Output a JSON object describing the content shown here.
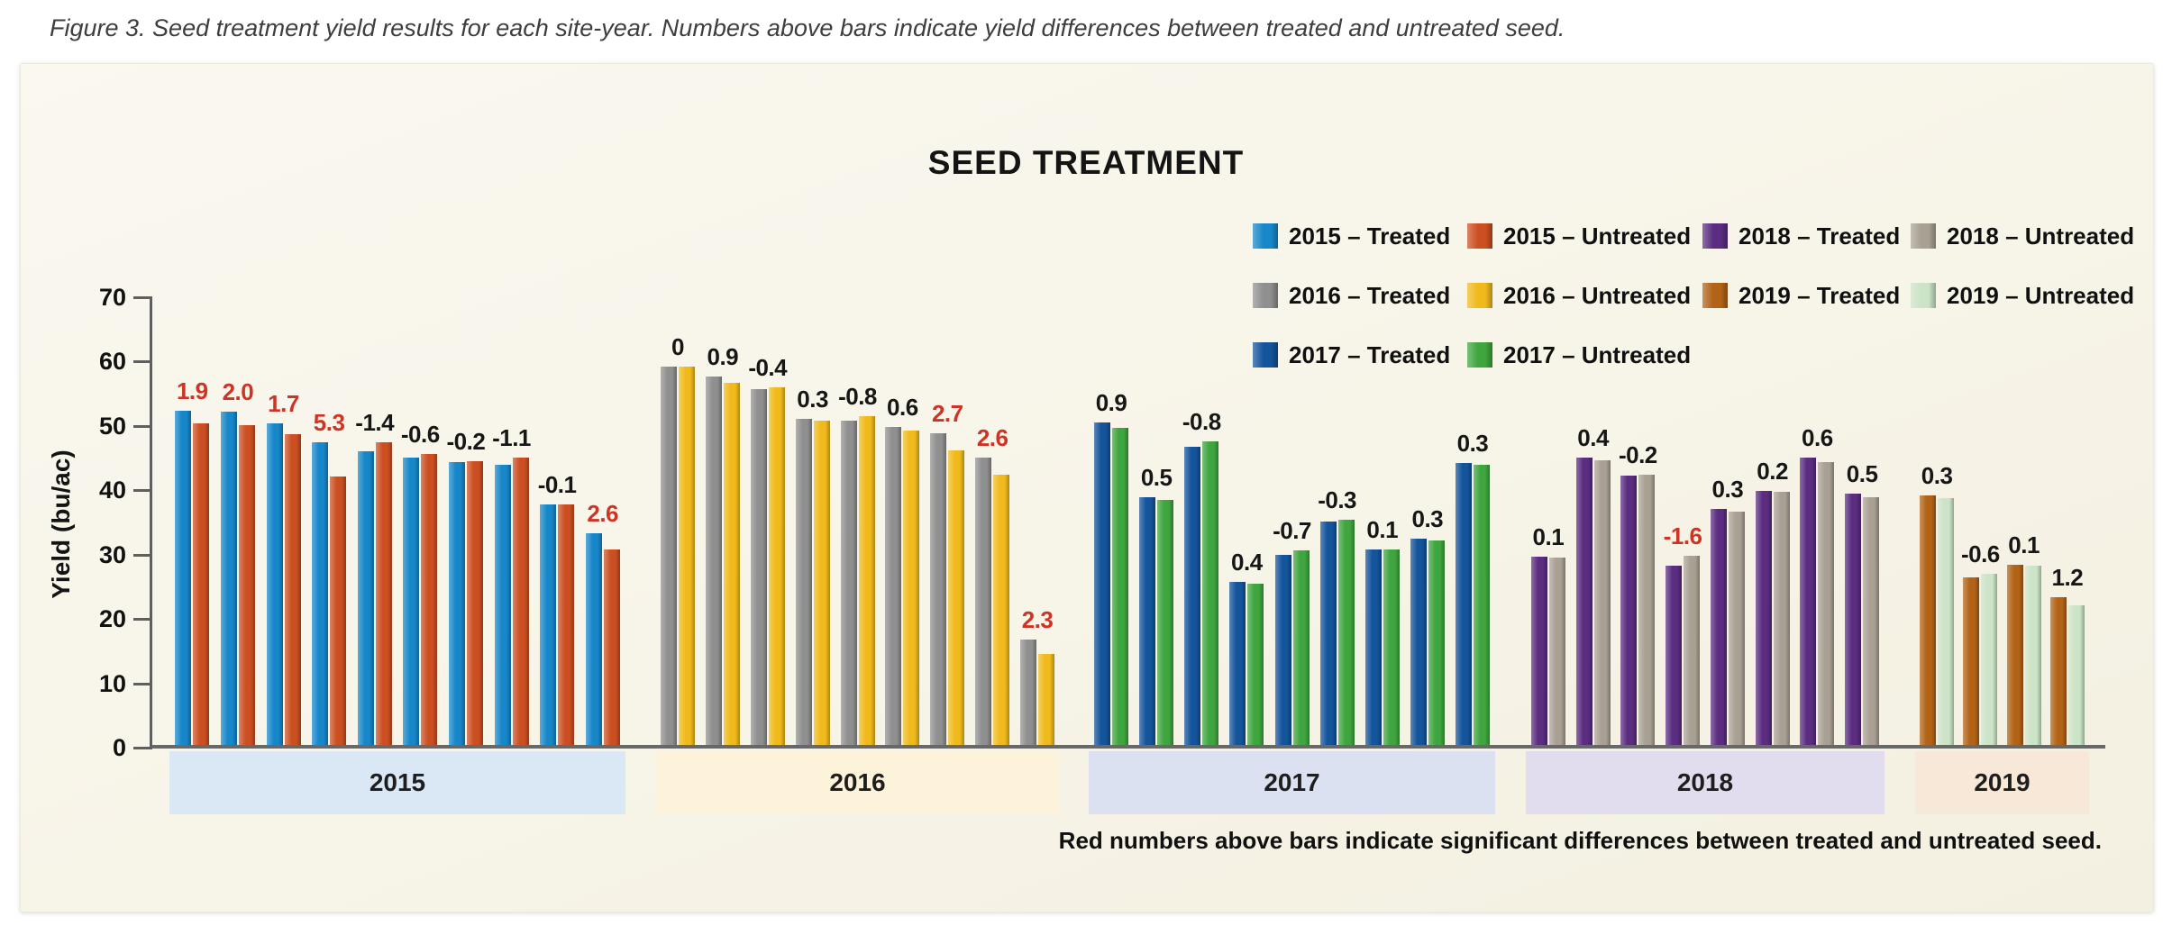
{
  "figure_caption": "Figure 3. Seed treatment yield results for each site-year. Numbers above bars indicate yield differences between treated and untreated seed.",
  "chart_title": "SEED TREATMENT",
  "footnote": "Red numbers above bars indicate significant differences between treated and untreated seed.",
  "y_axis": {
    "label": "Yield (bu/ac)",
    "ticks": [
      0,
      10,
      20,
      30,
      40,
      50,
      60,
      70
    ],
    "min": 0,
    "max": 70
  },
  "colors": {
    "significant_label": "#ce3425",
    "normal_label": "#161616",
    "axis": "#5f5f5f",
    "baseline": "#686868",
    "panel_background": "#f7f4e8"
  },
  "legend": {
    "items": [
      {
        "label": "2015 – Treated",
        "color": "#1787c9"
      },
      {
        "label": "2015 – Untreated",
        "color": "#cc4f22"
      },
      {
        "label": "2018 – Treated",
        "color": "#5b2d81"
      },
      {
        "label": "2018 – Untreated",
        "color": "#a9a094"
      },
      {
        "label": "2016 – Treated",
        "color": "#8f8f8f"
      },
      {
        "label": "2016 – Untreated",
        "color": "#f0ba1c"
      },
      {
        "label": "2019 – Treated",
        "color": "#b26317"
      },
      {
        "label": "2019 – Untreated",
        "color": "#cbe3c6"
      },
      {
        "label": "2017 – Treated",
        "color": "#14549b"
      },
      {
        "label": "2017 – Untreated",
        "color": "#3fa53e"
      }
    ]
  },
  "chart_data": {
    "type": "bar",
    "title": "SEED TREATMENT",
    "xlabel": "",
    "ylabel": "Yield (bu/ac)",
    "ylim": [
      0,
      70
    ],
    "grid": false,
    "legend_position": "top-right",
    "note": "Each site is a pair of bars: treated vs untreated yield (bu/ac); diff label = treated minus untreated; significant diffs shown in red",
    "groups": [
      {
        "year": "2015",
        "band_color": "#dae7f5",
        "treated_color": "#1787c9",
        "untreated_color": "#cc4f22",
        "sites": [
          {
            "treated": 52.3,
            "untreated": 50.4,
            "diff": "1.9",
            "significant": true
          },
          {
            "treated": 52.1,
            "untreated": 50.1,
            "diff": "2.0",
            "significant": true
          },
          {
            "treated": 50.4,
            "untreated": 48.7,
            "diff": "1.7",
            "significant": true
          },
          {
            "treated": 47.4,
            "untreated": 42.1,
            "diff": "5.3",
            "significant": true
          },
          {
            "treated": 46.0,
            "untreated": 47.4,
            "diff": "-1.4",
            "significant": false
          },
          {
            "treated": 45.0,
            "untreated": 45.6,
            "diff": "-0.6",
            "significant": false
          },
          {
            "treated": 44.3,
            "untreated": 44.5,
            "diff": "-0.2",
            "significant": false
          },
          {
            "treated": 43.9,
            "untreated": 45.0,
            "diff": "-1.1",
            "significant": false
          },
          {
            "treated": 37.7,
            "untreated": 37.8,
            "diff": "-0.1",
            "significant": false
          },
          {
            "treated": 33.3,
            "untreated": 30.7,
            "diff": "2.6",
            "significant": true
          }
        ]
      },
      {
        "year": "2016",
        "band_color": "#fdf3da",
        "treated_color": "#8f8f8f",
        "untreated_color": "#f0ba1c",
        "sites": [
          {
            "treated": 59.1,
            "untreated": 59.1,
            "diff": "0",
            "significant": false
          },
          {
            "treated": 57.6,
            "untreated": 56.7,
            "diff": "0.9",
            "significant": false
          },
          {
            "treated": 55.6,
            "untreated": 56.0,
            "diff": "-0.4",
            "significant": false
          },
          {
            "treated": 51.0,
            "untreated": 50.7,
            "diff": "0.3",
            "significant": false
          },
          {
            "treated": 50.7,
            "untreated": 51.5,
            "diff": "-0.8",
            "significant": false
          },
          {
            "treated": 49.8,
            "untreated": 49.2,
            "diff": "0.6",
            "significant": false
          },
          {
            "treated": 48.8,
            "untreated": 46.1,
            "diff": "2.7",
            "significant": true
          },
          {
            "treated": 45.0,
            "untreated": 42.4,
            "diff": "2.6",
            "significant": true
          },
          {
            "treated": 16.8,
            "untreated": 14.5,
            "diff": "2.3",
            "significant": true
          }
        ]
      },
      {
        "year": "2017",
        "band_color": "#dbe1f0",
        "treated_color": "#14549b",
        "untreated_color": "#3fa53e",
        "sites": [
          {
            "treated": 50.5,
            "untreated": 49.6,
            "diff": "0.9",
            "significant": false
          },
          {
            "treated": 38.9,
            "untreated": 38.4,
            "diff": "0.5",
            "significant": false
          },
          {
            "treated": 46.7,
            "untreated": 47.5,
            "diff": "-0.8",
            "significant": false
          },
          {
            "treated": 25.8,
            "untreated": 25.4,
            "diff": "0.4",
            "significant": false
          },
          {
            "treated": 29.9,
            "untreated": 30.6,
            "diff": "-0.7",
            "significant": false
          },
          {
            "treated": 35.1,
            "untreated": 35.4,
            "diff": "-0.3",
            "significant": false
          },
          {
            "treated": 30.8,
            "untreated": 30.7,
            "diff": "0.1",
            "significant": false
          },
          {
            "treated": 32.5,
            "untreated": 32.2,
            "diff": "0.3",
            "significant": false
          },
          {
            "treated": 44.2,
            "untreated": 43.9,
            "diff": "0.3",
            "significant": false
          }
        ]
      },
      {
        "year": "2018",
        "band_color": "#e1dcee",
        "treated_color": "#5b2d81",
        "untreated_color": "#a9a094",
        "sites": [
          {
            "treated": 29.6,
            "untreated": 29.5,
            "diff": "0.1",
            "significant": false
          },
          {
            "treated": 45.0,
            "untreated": 44.6,
            "diff": "0.4",
            "significant": false
          },
          {
            "treated": 42.2,
            "untreated": 42.4,
            "diff": "-0.2",
            "significant": false
          },
          {
            "treated": 28.2,
            "untreated": 29.8,
            "diff": "-1.6",
            "significant": true
          },
          {
            "treated": 37.0,
            "untreated": 36.7,
            "diff": "0.3",
            "significant": false
          },
          {
            "treated": 39.9,
            "untreated": 39.7,
            "diff": "0.2",
            "significant": false
          },
          {
            "treated": 45.0,
            "untreated": 44.4,
            "diff": "0.6",
            "significant": false
          },
          {
            "treated": 39.4,
            "untreated": 38.9,
            "diff": "0.5",
            "significant": false
          }
        ]
      },
      {
        "year": "2019",
        "band_color": "#f7e8d7",
        "treated_color": "#b26317",
        "untreated_color": "#cbe3c6",
        "sites": [
          {
            "treated": 39.1,
            "untreated": 38.8,
            "diff": "0.3",
            "significant": false
          },
          {
            "treated": 26.4,
            "untreated": 27.0,
            "diff": "-0.6",
            "significant": false
          },
          {
            "treated": 28.4,
            "untreated": 28.3,
            "diff": "0.1",
            "significant": false
          },
          {
            "treated": 23.3,
            "untreated": 22.1,
            "diff": "1.2",
            "significant": false
          }
        ]
      }
    ]
  }
}
